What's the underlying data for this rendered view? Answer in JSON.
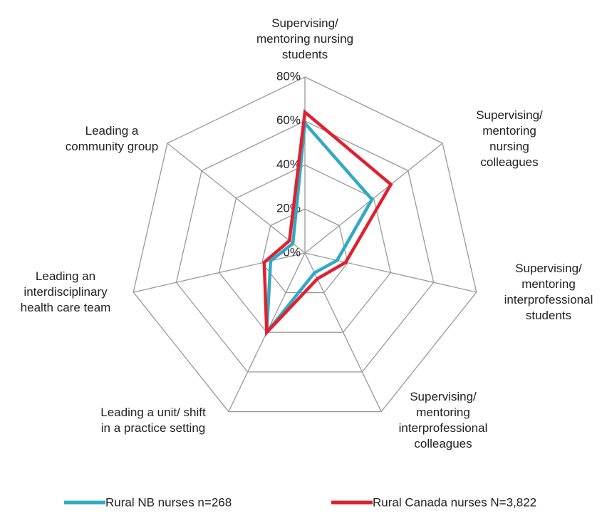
{
  "chart_data": {
    "type": "radar",
    "categories": [
      "Supervising/\nmentoring nursing\nstudents",
      "Supervising/\nmentoring nursing\ncolleagues",
      "Supervising/\nmentoring\ninterprofessional\nstudents",
      "Supervising/\nmentoring\ninterprofessional\ncolleagues",
      "Leading a unit/ shift\nin a practice setting",
      "Leading an\ninterdisciplinary\nhealth care team",
      "Leading a\ncommunity group"
    ],
    "series": [
      {
        "name": "Rural NB nurses n=268",
        "color": "#31a9c4",
        "values": [
          59,
          39,
          15,
          10,
          40,
          16,
          7
        ]
      },
      {
        "name": "Rural Canada nurses N=3,822",
        "color": "#e0202e",
        "values": [
          64,
          50,
          19,
          13,
          40,
          19,
          9
        ]
      }
    ],
    "ylim": [
      0,
      80
    ],
    "yticks": [
      {
        "value": 0,
        "label": "0%"
      },
      {
        "value": 20,
        "label": "20%"
      },
      {
        "value": 40,
        "label": "40%"
      },
      {
        "value": 60,
        "label": "60%"
      },
      {
        "value": 80,
        "label": "80%"
      }
    ],
    "grid": true,
    "legend": "bottom"
  }
}
